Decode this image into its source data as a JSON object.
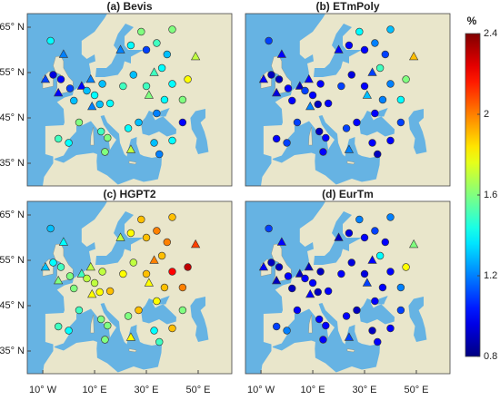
{
  "chart_data": {
    "type": "map-scatter",
    "colorbar_label": "%",
    "clim": [
      0.8,
      2.4
    ],
    "cticks": [
      0.8,
      1.2,
      1.6,
      2,
      2.4
    ],
    "xlim": [
      -16,
      63
    ],
    "ylim": [
      30,
      68
    ],
    "xticks": [
      {
        "value": -10,
        "label": "10° W"
      },
      {
        "value": 10,
        "label": "10° E"
      },
      {
        "value": 30,
        "label": "30° E"
      },
      {
        "value": 50,
        "label": "50° E"
      }
    ],
    "yticks": [
      {
        "value": 65,
        "label": "65° N"
      },
      {
        "value": 55,
        "label": "55° N"
      },
      {
        "value": 45,
        "label": "45° N"
      },
      {
        "value": 35,
        "label": "35° N"
      }
    ],
    "stations": {
      "lon": [
        -7,
        -2,
        -9,
        -6,
        -3,
        -4,
        0.5,
        2,
        5,
        7,
        8.5,
        10,
        13,
        9,
        12,
        16,
        21,
        25,
        20,
        24,
        30,
        28,
        40,
        34,
        38,
        36,
        49,
        46,
        40,
        33,
        30,
        31,
        37,
        44,
        34,
        44,
        27,
        23,
        12.5,
        15,
        4,
        -4,
        0,
        14,
        24,
        33,
        35,
        40
      ],
      "lat": [
        62,
        59,
        53.5,
        54.5,
        53.5,
        50.5,
        51.5,
        48.8,
        52,
        51,
        53.5,
        50,
        52.5,
        47.5,
        48,
        48.2,
        52,
        54.5,
        60,
        61,
        60,
        64,
        64.5,
        61.5,
        59,
        56,
        58.5,
        53.5,
        52.5,
        55,
        52,
        50,
        49,
        49,
        46,
        44,
        44,
        42.7,
        42,
        40.6,
        44,
        40.4,
        39.5,
        37.5,
        38,
        39.5,
        37,
        40
      ],
      "shape": [
        "circle",
        "triangle",
        "triangle",
        "circle",
        "circle",
        "triangle",
        "circle",
        "circle",
        "triangle",
        "circle",
        "triangle",
        "circle",
        "circle",
        "triangle",
        "circle",
        "circle",
        "circle",
        "circle",
        "triangle",
        "circle",
        "circle",
        "circle",
        "circle",
        "circle",
        "circle",
        "circle",
        "triangle",
        "circle",
        "circle",
        "triangle",
        "circle",
        "triangle",
        "circle",
        "circle",
        "circle",
        "circle",
        "circle",
        "circle",
        "circle",
        "circle",
        "circle",
        "circle",
        "circle",
        "circle",
        "triangle",
        "circle",
        "circle",
        "circle"
      ]
    },
    "panels": [
      {
        "title": "(a) Bevis",
        "values": [
          1.4,
          1.2,
          1.1,
          0.95,
          1.0,
          1.0,
          1.1,
          1.3,
          1.0,
          1.3,
          1.2,
          1.4,
          1.3,
          1.2,
          1.3,
          1.4,
          1.5,
          1.3,
          1.2,
          1.4,
          1.1,
          1.6,
          1.6,
          1.5,
          1.3,
          1.4,
          1.7,
          1.8,
          1.4,
          1.5,
          1.5,
          1.6,
          1.4,
          1.6,
          1.2,
          1.0,
          1.3,
          1.4,
          1.5,
          1.6,
          1.6,
          1.5,
          1.4,
          1.6,
          1.7,
          1.3,
          1.2,
          1.4
        ]
      },
      {
        "title": "(b) ETmPoly",
        "values": [
          1.1,
          1.0,
          1.0,
          0.9,
          0.9,
          0.95,
          1.0,
          1.0,
          0.9,
          1.1,
          1.0,
          1.0,
          1.0,
          1.2,
          0.9,
          1.0,
          1.1,
          0.95,
          1.0,
          1.0,
          1.0,
          1.4,
          1.3,
          1.2,
          1.1,
          1.5,
          1.9,
          1.6,
          1.2,
          1.1,
          1.0,
          1.3,
          1.2,
          1.4,
          1.0,
          1.1,
          1.0,
          1.1,
          0.9,
          1.0,
          1.1,
          1.0,
          1.1,
          1.0,
          1.2,
          1.0,
          0.9,
          1.0
        ]
      },
      {
        "title": "(c) HGPT2",
        "values": [
          1.3,
          1.4,
          1.3,
          1.4,
          1.5,
          1.6,
          1.6,
          1.6,
          1.5,
          1.7,
          1.7,
          1.7,
          1.7,
          1.8,
          1.8,
          1.9,
          1.8,
          1.7,
          1.7,
          1.8,
          1.9,
          1.9,
          1.9,
          2.0,
          2.0,
          1.9,
          2.1,
          2.3,
          2.2,
          2.0,
          1.9,
          1.8,
          1.9,
          2.0,
          1.8,
          1.6,
          1.9,
          1.6,
          1.6,
          1.6,
          1.5,
          1.5,
          1.4,
          1.6,
          1.8,
          1.4,
          1.5,
          1.9
        ]
      },
      {
        "title": "(d) EurTm",
        "values": [
          1.1,
          1.0,
          1.0,
          0.9,
          0.9,
          0.9,
          1.0,
          0.9,
          0.9,
          1.0,
          0.9,
          1.0,
          0.9,
          1.0,
          0.9,
          1.0,
          1.0,
          0.95,
          0.9,
          0.95,
          1.0,
          1.2,
          1.2,
          1.1,
          1.0,
          1.4,
          1.6,
          1.8,
          1.0,
          1.0,
          0.95,
          1.1,
          1.0,
          1.2,
          1.0,
          1.1,
          0.9,
          1.0,
          1.0,
          1.0,
          1.0,
          1.1,
          1.2,
          1.0,
          1.1,
          0.9,
          1.0,
          1.0
        ]
      }
    ]
  }
}
